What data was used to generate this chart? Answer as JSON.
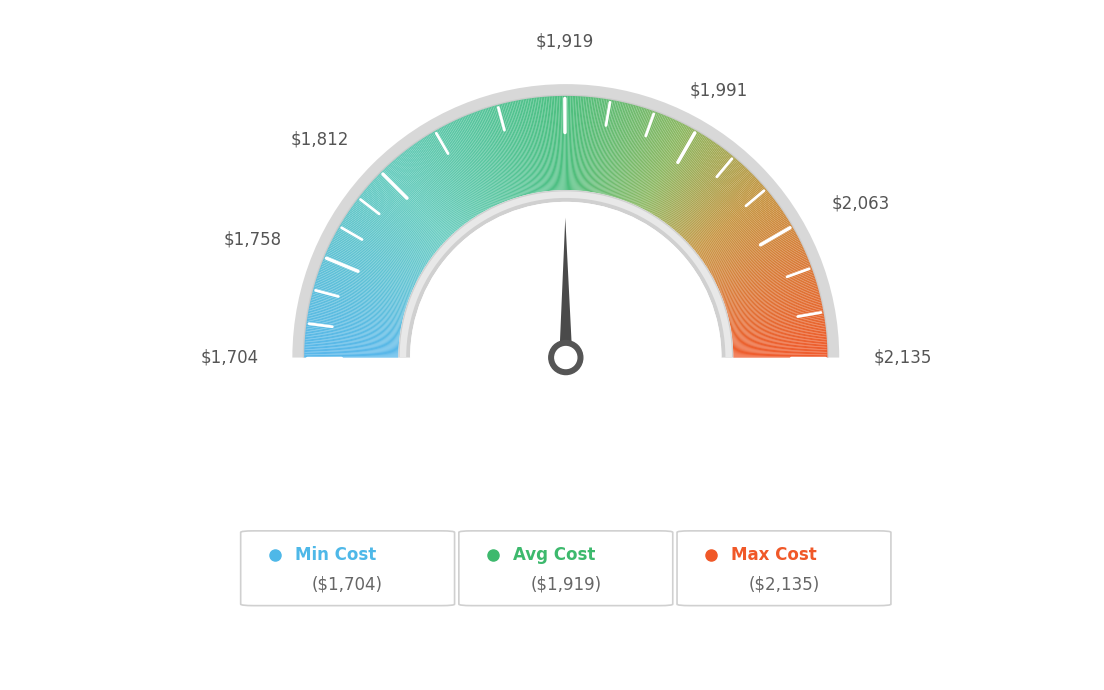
{
  "min_val": 1704,
  "max_val": 2135,
  "avg_val": 1919,
  "needle_val": 1919,
  "tick_labels": [
    "$1,704",
    "$1,758",
    "$1,812",
    "$1,919",
    "$1,991",
    "$2,063",
    "$2,135"
  ],
  "tick_values": [
    1704,
    1758,
    1812,
    1919,
    1991,
    2063,
    2135
  ],
  "legend_items": [
    {
      "label": "Min Cost",
      "value": "($1,704)",
      "color": "#4eb8e8"
    },
    {
      "label": "Avg Cost",
      "value": "($1,919)",
      "color": "#3db96d"
    },
    {
      "label": "Max Cost",
      "value": "($2,135)",
      "color": "#f05828"
    }
  ],
  "gradient_stops": [
    [
      0.0,
      [
        0.35,
        0.72,
        0.92
      ]
    ],
    [
      0.25,
      [
        0.4,
        0.8,
        0.75
      ]
    ],
    [
      0.5,
      [
        0.3,
        0.75,
        0.5
      ]
    ],
    [
      0.65,
      [
        0.55,
        0.72,
        0.38
      ]
    ],
    [
      0.78,
      [
        0.78,
        0.58,
        0.25
      ]
    ],
    [
      1.0,
      [
        0.94,
        0.36,
        0.18
      ]
    ]
  ],
  "background_color": "#ffffff"
}
